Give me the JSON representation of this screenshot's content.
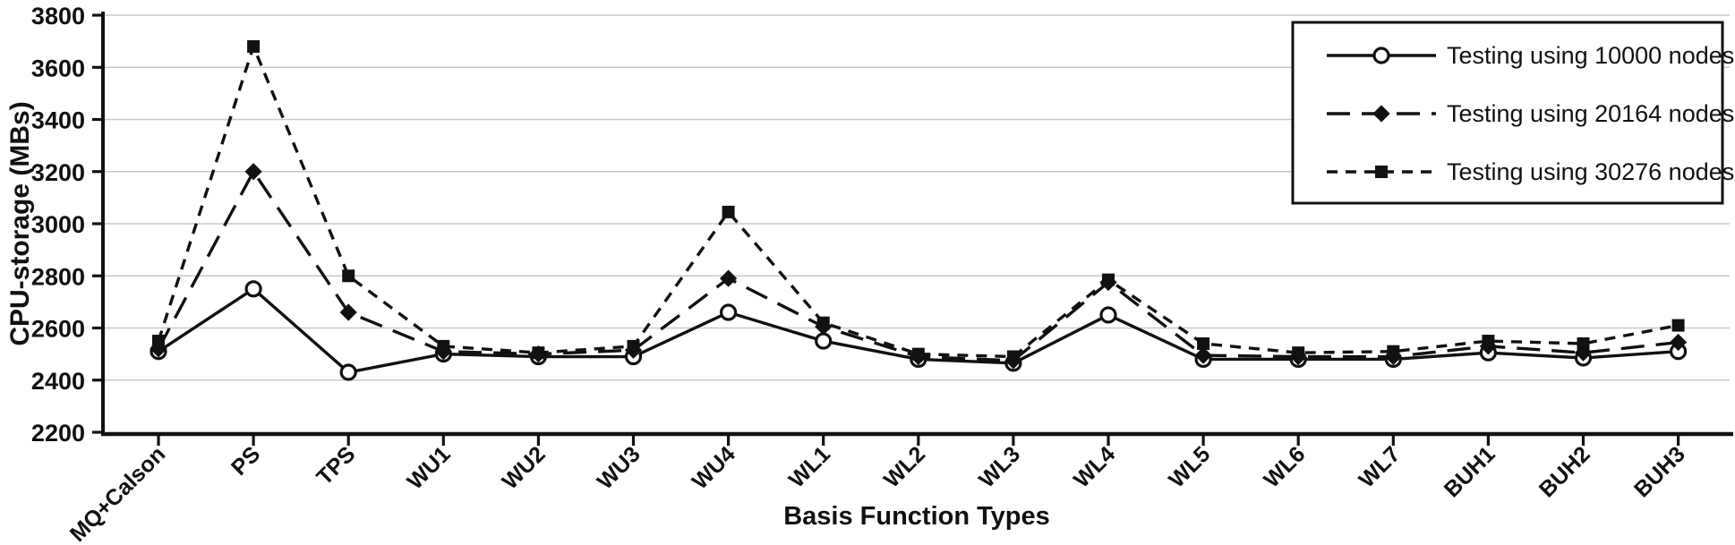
{
  "chart_data": {
    "type": "line",
    "title": "",
    "xlabel": "Basis Function Types",
    "ylabel": "CPU-storage (MBs)",
    "ylim": [
      2200,
      3800
    ],
    "yticks": [
      2200,
      2400,
      2600,
      2800,
      3000,
      3200,
      3400,
      3600,
      3800
    ],
    "grid": "horizontal",
    "legend_position": "top-right",
    "categories": [
      "MQ+Calson",
      "PS",
      "TPS",
      "WU1",
      "WU2",
      "WU3",
      "WU4",
      "WL1",
      "WL2",
      "WL3",
      "WL4",
      "WL5",
      "WL6",
      "WL7",
      "BUH1",
      "BUH2",
      "BUH3"
    ],
    "series": [
      {
        "name": "Testing using 10000 nodes",
        "marker": "open-circle",
        "line": "solid",
        "values": [
          2510,
          2750,
          2430,
          2500,
          2490,
          2490,
          2660,
          2550,
          2480,
          2465,
          2650,
          2480,
          2480,
          2480,
          2505,
          2485,
          2510
        ]
      },
      {
        "name": "Testing using 20164 nodes",
        "marker": "filled-diamond",
        "line": "long-dash",
        "values": [
          2520,
          3200,
          2660,
          2510,
          2500,
          2515,
          2790,
          2605,
          2490,
          2475,
          2775,
          2495,
          2490,
          2490,
          2530,
          2505,
          2545
        ]
      },
      {
        "name": "Testing using 30276 nodes",
        "marker": "filled-square",
        "line": "short-dash",
        "values": [
          2550,
          3680,
          2800,
          2530,
          2505,
          2530,
          3045,
          2620,
          2500,
          2490,
          2785,
          2540,
          2505,
          2510,
          2550,
          2540,
          2610
        ]
      }
    ],
    "colors": {
      "series": "#111111",
      "gridline": "#c9c9c9",
      "background": "#ffffff",
      "legend_border": "#111111"
    }
  }
}
